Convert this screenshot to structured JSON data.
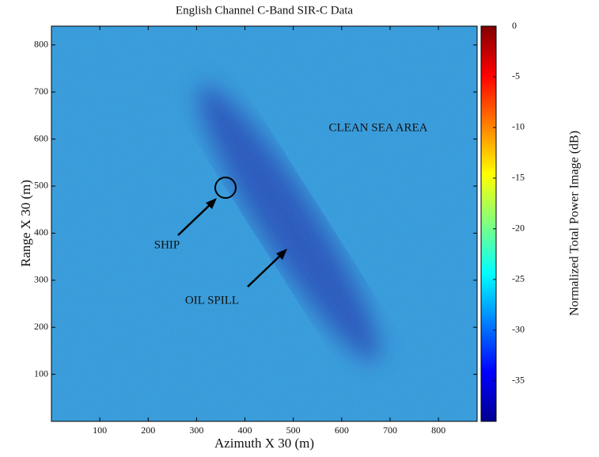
{
  "chart_data": {
    "type": "heatmap",
    "title": "English Channel C-Band SIR-C Data",
    "x_label": "Azimuth X 30 (m)",
    "y_label": "Range X 30 (m)",
    "xlim": [
      0,
      880
    ],
    "xticks": [
      100,
      200,
      300,
      400,
      500,
      600,
      700,
      800
    ],
    "ylim": [
      0,
      840
    ],
    "yticks": [
      100,
      200,
      300,
      400,
      500,
      600,
      700,
      800
    ],
    "colorbar": {
      "label": "Normalized Total Power Image (dB)",
      "lim": [
        -39,
        0
      ],
      "ticks": [
        0,
        -5,
        -10,
        -15,
        -20,
        -25,
        -30,
        -35
      ]
    },
    "annotations": [
      "CLEAN SEA AREA",
      "SHIP",
      "OIL SPILL"
    ]
  }
}
